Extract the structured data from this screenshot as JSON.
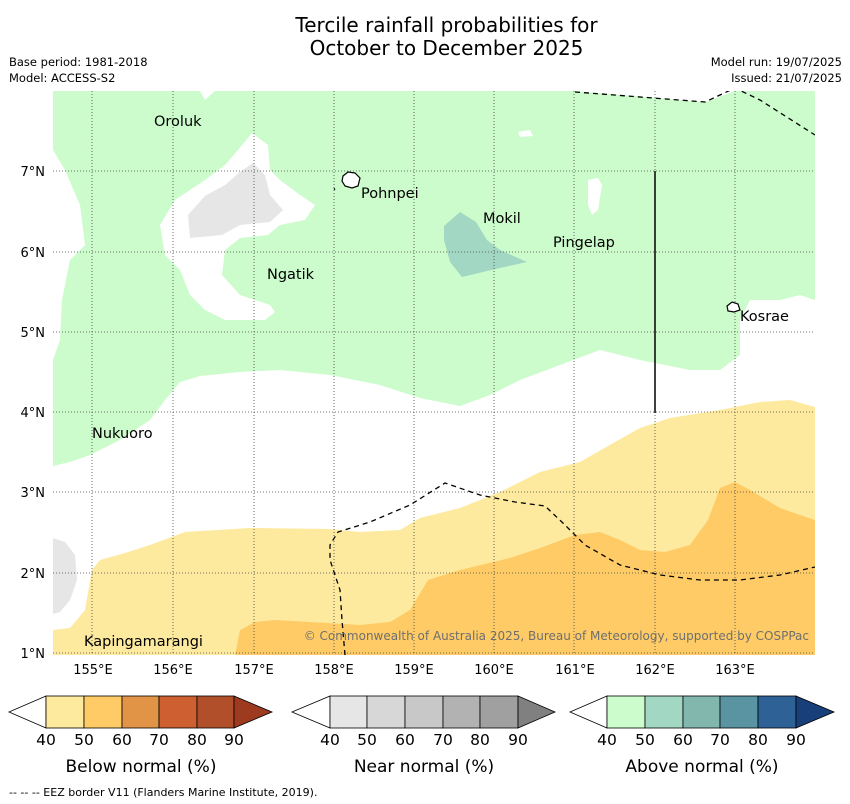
{
  "header": {
    "title_line1": "Tercile rainfall probabilities for",
    "title_line2": "October to December 2025",
    "base_period": "Base period: 1981-2018",
    "model": "Model: ACCESS-S2",
    "model_run": "Model run: 19/07/2025",
    "issued": "Issued: 21/07/2025"
  },
  "map": {
    "lon_labels": [
      "155°E",
      "156°E",
      "157°E",
      "158°E",
      "159°E",
      "160°E",
      "161°E",
      "162°E",
      "163°E"
    ],
    "lat_labels": [
      "7°N",
      "6°N",
      "5°N",
      "4°N",
      "3°N",
      "2°N",
      "1°N"
    ],
    "places": {
      "oroluk": "Oroluk",
      "pohnpei": "Pohnpei",
      "mokil": "Mokil",
      "pingelap": "Pingelap",
      "ngatik": "Ngatik",
      "kosrae": "Kosrae",
      "nukuoro": "Nukuoro",
      "kapingamarangi": "Kapingamarangi"
    },
    "copyright": "© Commonwealth of Australia 2025, Bureau of Meteorology, supported by COSPPac",
    "colors": {
      "above_50": "#ccfccc",
      "above_60": "#a2d8c3",
      "near_50": "#e6e6e6",
      "below_50": "#fdea9e",
      "below_60": "#fecb66"
    }
  },
  "colorbars": {
    "ticks": [
      "40",
      "50",
      "60",
      "70",
      "80",
      "90"
    ],
    "below": {
      "title": "Below normal (%)",
      "colors": [
        "#fdea9e",
        "#fecb66",
        "#e19446",
        "#cd5f30",
        "#b14f2a",
        "#9e3a1f"
      ]
    },
    "near": {
      "title": "Near normal (%)",
      "colors": [
        "#e6e6e6",
        "#d7d7d7",
        "#c8c8c8",
        "#b2b2b2",
        "#a0a0a0",
        "#808080"
      ]
    },
    "above": {
      "title": "Above normal (%)",
      "colors": [
        "#ccfccc",
        "#a2d8c3",
        "#82b7ae",
        "#5a93a2",
        "#2e6297",
        "#193f7a"
      ]
    }
  },
  "footnote": "--  --  -- EEZ border V11 (Flanders Marine Institute, 2019)."
}
